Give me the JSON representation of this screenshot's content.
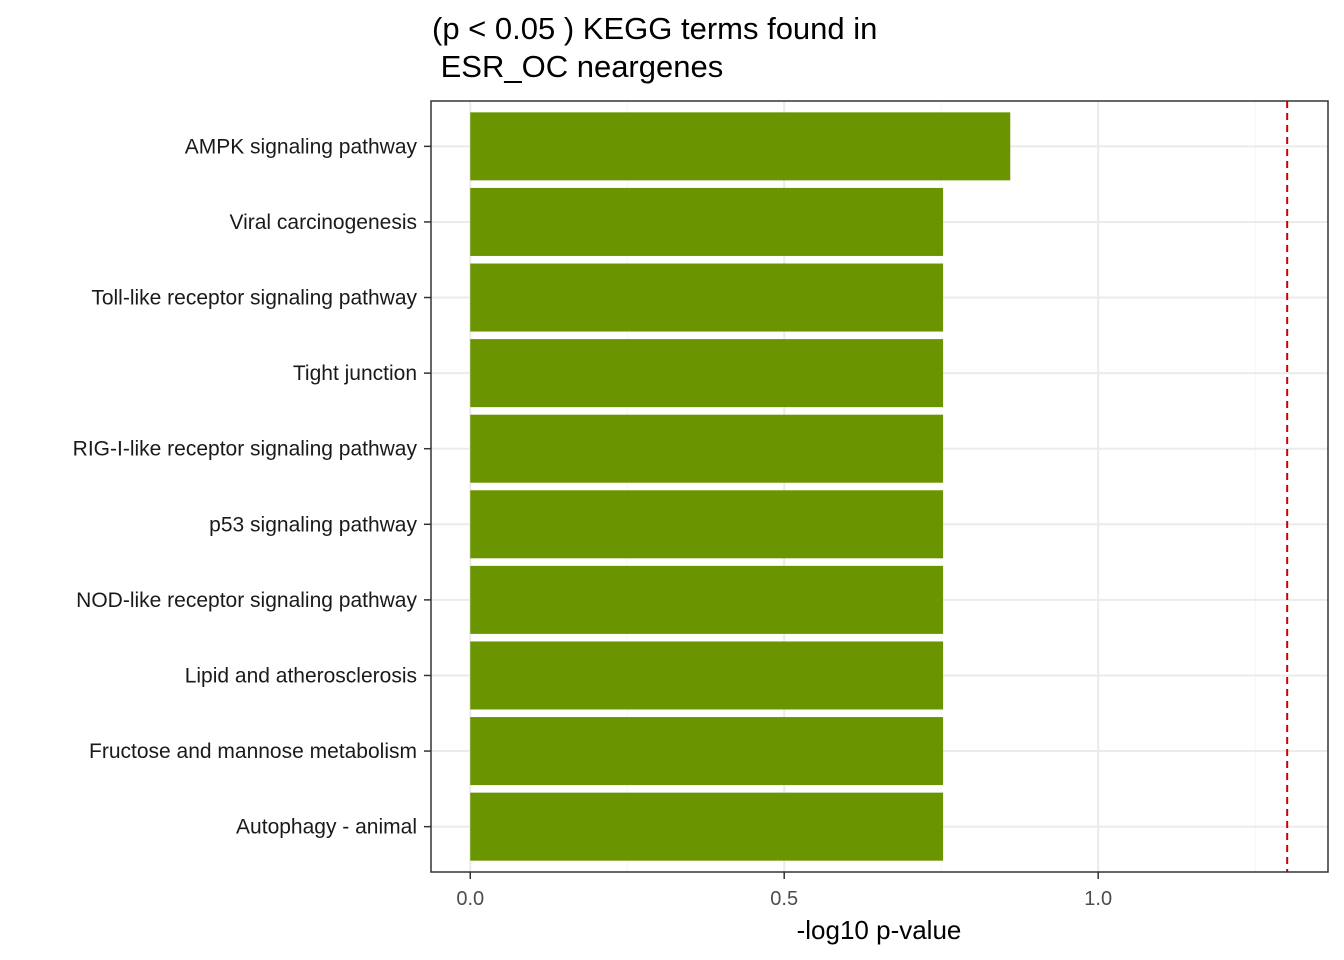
{
  "chart_data": {
    "type": "bar",
    "orientation": "horizontal",
    "title": "(p < 0.05 ) KEGG terms found in\n ESR_OC neargenes",
    "xlabel": "-log10 p-value",
    "ylabel": "",
    "categories": [
      "AMPK signaling pathway",
      "Viral carcinogenesis",
      "Toll-like receptor signaling pathway",
      "Tight junction",
      "RIG-I-like receptor signaling pathway",
      "p53 signaling pathway",
      "NOD-like receptor signaling pathway",
      "Lipid and atherosclerosis",
      "Fructose and mannose metabolism",
      "Autophagy - animal"
    ],
    "values": [
      0.86,
      0.753,
      0.753,
      0.753,
      0.753,
      0.753,
      0.753,
      0.753,
      0.753,
      0.753
    ],
    "xlim": [
      -0.0625,
      1.366
    ],
    "xticks": [
      0.0,
      0.5,
      1.0
    ],
    "xtick_labels": [
      "0.0",
      "0.5",
      "1.0"
    ],
    "threshold": 1.301,
    "grid": true,
    "legend": "none",
    "colors": {
      "bar": "#6B9500",
      "threshold_line": "#CC0000",
      "grid_major": "#EBEBEB",
      "grid_minor": "#F5F5F5",
      "panel_border": "#333333"
    }
  }
}
